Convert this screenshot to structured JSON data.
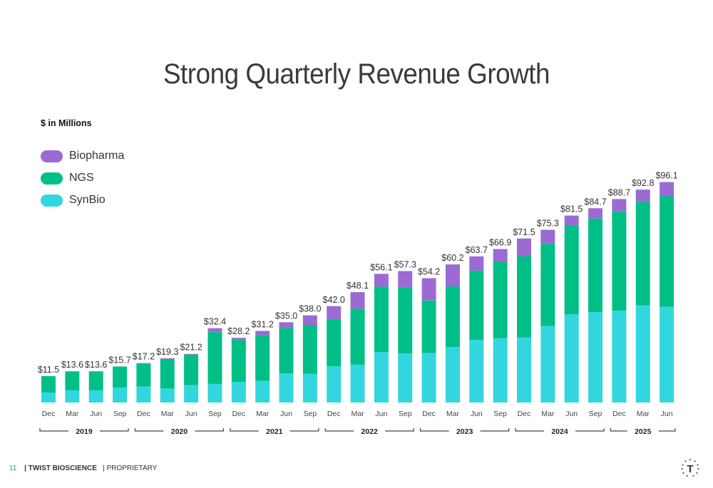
{
  "slide": {
    "title": "Strong Quarterly Revenue Growth",
    "unit_label": "$ in Millions"
  },
  "legend": [
    {
      "name": "Biopharma",
      "color": "#9b6bd3"
    },
    {
      "name": "NGS",
      "color": "#00bf86"
    },
    {
      "name": "SynBio",
      "color": "#33d6df"
    }
  ],
  "footer": {
    "page_number": "11",
    "company": "| TWIST BIOSCIENCE",
    "tag": "| PROPRIETARY",
    "logo_letter": "T"
  },
  "chart_data": {
    "type": "bar",
    "stacked": true,
    "categories": [
      "Dec",
      "Mar",
      "Jun",
      "Sep",
      "Dec",
      "Mar",
      "Jun",
      "Sep",
      "Dec",
      "Mar",
      "Jun",
      "Sep",
      "Dec",
      "Mar",
      "Jun",
      "Sep",
      "Dec",
      "Mar",
      "Jun",
      "Sep",
      "Dec",
      "Mar",
      "Jun",
      "Sep",
      "Dec",
      "Mar",
      "Jun"
    ],
    "year_groups": [
      {
        "label": "2019",
        "start": 0,
        "end": 3
      },
      {
        "label": "2020",
        "start": 4,
        "end": 7
      },
      {
        "label": "2021",
        "start": 8,
        "end": 11
      },
      {
        "label": "2022",
        "start": 12,
        "end": 15
      },
      {
        "label": "2023",
        "start": 16,
        "end": 19
      },
      {
        "label": "2024",
        "start": 20,
        "end": 23
      },
      {
        "label": "2025",
        "start": 24,
        "end": 26
      }
    ],
    "totals": [
      "$11.5",
      "$13.6",
      "$13.6",
      "$15.7",
      "$17.2",
      "$19.3",
      "$21.2",
      "$32.4",
      "$28.2",
      "$31.2",
      "$35.0",
      "$38.0",
      "$42.0",
      "$48.1",
      "$56.1",
      "$57.3",
      "$54.2",
      "$60.2",
      "$63.7",
      "$66.9",
      "$71.5",
      "$75.3",
      "$81.5",
      "$84.7",
      "$88.7",
      "$92.8",
      "$96.1"
    ],
    "series": [
      {
        "name": "SynBio",
        "color": "#33d6df",
        "values": [
          4.3,
          5.3,
          5.3,
          6.5,
          7.0,
          6.1,
          7.6,
          8.1,
          9.0,
          9.5,
          12.7,
          12.5,
          15.8,
          16.5,
          22.0,
          21.4,
          21.6,
          24.2,
          27.3,
          28.0,
          28.4,
          33.4,
          38.4,
          39.4,
          40.0,
          42.4,
          41.7
        ]
      },
      {
        "name": "NGS",
        "color": "#00bf86",
        "values": [
          7.2,
          8.3,
          8.3,
          9.2,
          10.0,
          12.9,
          13.3,
          22.6,
          18.3,
          19.9,
          19.8,
          21.2,
          20.6,
          24.4,
          28.5,
          28.8,
          22.9,
          26.4,
          30.2,
          33.5,
          35.4,
          35.9,
          38.9,
          40.8,
          43.3,
          45.1,
          48.2
        ]
      },
      {
        "name": "Biopharma",
        "color": "#9b6bd3",
        "values": [
          0,
          0,
          0,
          0,
          0.2,
          0.3,
          0.3,
          1.7,
          0.9,
          1.8,
          2.5,
          4.3,
          5.6,
          7.2,
          5.6,
          7.1,
          9.7,
          9.6,
          6.2,
          5.4,
          7.7,
          6.0,
          4.2,
          4.5,
          5.4,
          5.3,
          6.2
        ]
      }
    ],
    "ylim": [
      0,
      100
    ],
    "grid": false,
    "legend_position": "top-left"
  }
}
